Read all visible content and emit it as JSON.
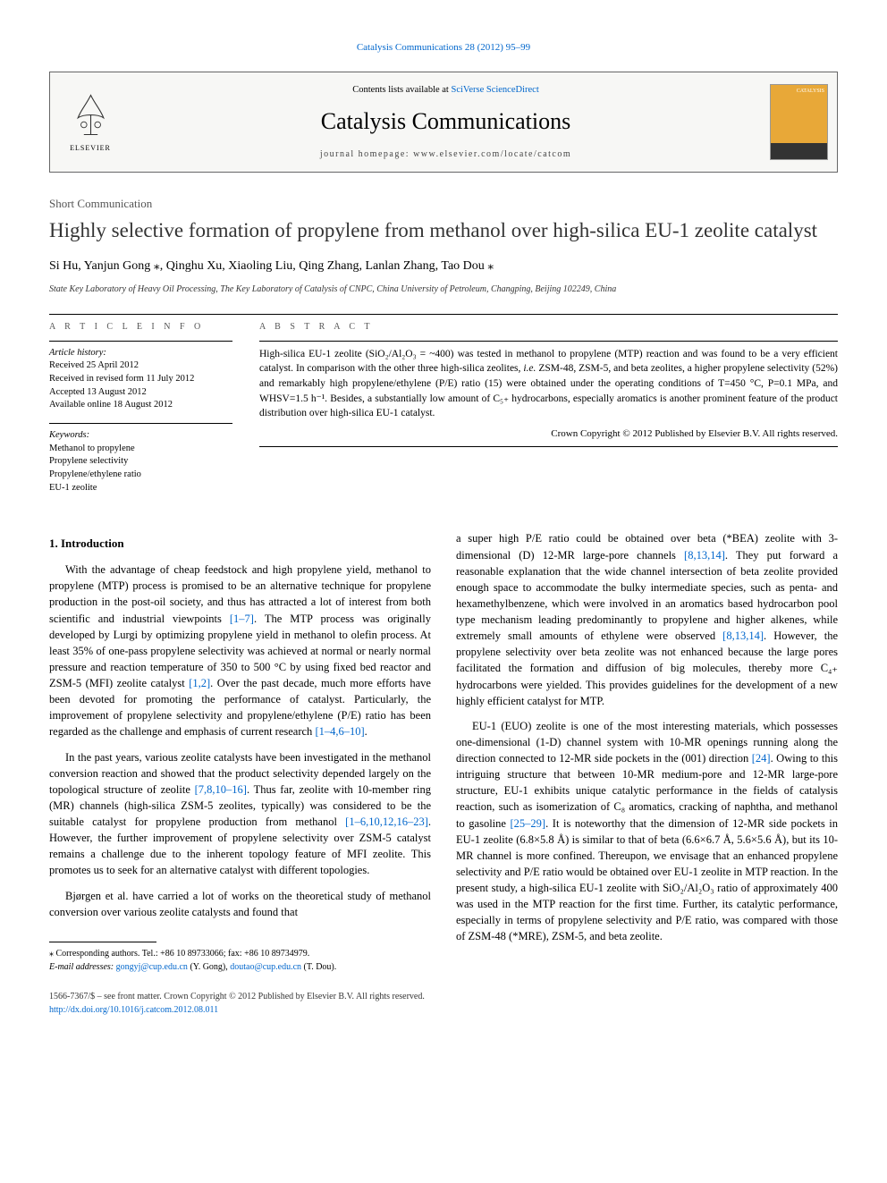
{
  "top_citation": "Catalysis Communications 28 (2012) 95–99",
  "header": {
    "elsevier_label": "ELSEVIER",
    "contents_prefix": "Contents lists available at ",
    "contents_link": "SciVerse ScienceDirect",
    "journal_name": "Catalysis Communications",
    "homepage_prefix": "journal homepage: ",
    "homepage_url": "www.elsevier.com/locate/catcom",
    "cover_label": "CATALYSIS"
  },
  "section_type": "Short Communication",
  "title": "Highly selective formation of propylene from methanol over high-silica EU-1 zeolite catalyst",
  "authors": "Si Hu, Yanjun Gong ⁎, Qinghu Xu, Xiaoling Liu, Qing Zhang, Lanlan Zhang, Tao Dou ⁎",
  "affiliation": "State Key Laboratory of Heavy Oil Processing, The Key Laboratory of Catalysis of CNPC, China University of Petroleum, Changping, Beijing 102249, China",
  "info": {
    "heading": "A R T I C L E   I N F O",
    "history_label": "Article history:",
    "history": [
      "Received 25 April 2012",
      "Received in revised form 11 July 2012",
      "Accepted 13 August 2012",
      "Available online 18 August 2012"
    ],
    "keywords_label": "Keywords:",
    "keywords": [
      "Methanol to propylene",
      "Propylene selectivity",
      "Propylene/ethylene ratio",
      "EU-1 zeolite"
    ]
  },
  "abstract": {
    "heading": "A B S T R A C T",
    "text": "High-silica EU-1 zeolite (SiO₂/Al₂O₃ = ~400) was tested in methanol to propylene (MTP) reaction and was found to be a very efficient catalyst. In comparison with the other three high-silica zeolites, i.e. ZSM-48, ZSM-5, and beta zeolites, a higher propylene selectivity (52%) and remarkably high propylene/ethylene (P/E) ratio (15) were obtained under the operating conditions of T=450 °C, P=0.1 MPa, and WHSV=1.5 h⁻¹. Besides, a substantially low amount of C₅₊ hydrocarbons, especially aromatics is another prominent feature of the product distribution over high-silica EU-1 catalyst.",
    "copyright": "Crown Copyright © 2012 Published by Elsevier B.V. All rights reserved."
  },
  "body": {
    "intro_heading": "1. Introduction",
    "left": [
      "With the advantage of cheap feedstock and high propylene yield, methanol to propylene (MTP) process is promised to be an alternative technique for propylene production in the post-oil society, and thus has attracted a lot of interest from both scientific and industrial viewpoints [1–7]. The MTP process was originally developed by Lurgi by optimizing propylene yield in methanol to olefin process. At least 35% of one-pass propylene selectivity was achieved at normal or nearly normal pressure and reaction temperature of 350 to 500 °C by using fixed bed reactor and ZSM-5 (MFI) zeolite catalyst [1,2]. Over the past decade, much more efforts have been devoted for promoting the performance of catalyst. Particularly, the improvement of propylene selectivity and propylene/ethylene (P/E) ratio has been regarded as the challenge and emphasis of current research [1–4,6–10].",
      "In the past years, various zeolite catalysts have been investigated in the methanol conversion reaction and showed that the product selectivity depended largely on the topological structure of zeolite [7,8,10–16]. Thus far, zeolite with 10-member ring (MR) channels (high-silica ZSM-5 zeolites, typically) was considered to be the suitable catalyst for propylene production from methanol [1–6,10,12,16–23]. However, the further improvement of propylene selectivity over ZSM-5 catalyst remains a challenge due to the inherent topology feature of MFI zeolite. This promotes us to seek for an alternative catalyst with different topologies.",
      "Bjørgen et al. have carried a lot of works on the theoretical study of methanol conversion over various zeolite catalysts and found that"
    ],
    "right": [
      "a super high P/E ratio could be obtained over beta (*BEA) zeolite with 3-dimensional (D) 12-MR large-pore channels [8,13,14]. They put forward a reasonable explanation that the wide channel intersection of beta zeolite provided enough space to accommodate the bulky intermediate species, such as penta- and hexamethylbenzene, which were involved in an aromatics based hydrocarbon pool type mechanism leading predominantly to propylene and higher alkenes, while extremely small amounts of ethylene were observed [8,13,14]. However, the propylene selectivity over beta zeolite was not enhanced because the large pores facilitated the formation and diffusion of big molecules, thereby more C₄₊ hydrocarbons were yielded. This provides guidelines for the development of a new highly efficient catalyst for MTP.",
      "EU-1 (EUO) zeolite is one of the most interesting materials, which possesses one-dimensional (1-D) channel system with 10-MR openings running along the direction connected to 12-MR side pockets in the (001) direction [24]. Owing to this intriguing structure that between 10-MR medium-pore and 12-MR large-pore structure, EU-1 exhibits unique catalytic performance in the fields of catalysis reaction, such as isomerization of C₈ aromatics, cracking of naphtha, and methanol to gasoline [25–29]. It is noteworthy that the dimension of 12-MR side pockets in EU-1 zeolite (6.8×5.8 Å) is similar to that of beta (6.6×6.7 Å, 5.6×5.6 Å), but its 10-MR channel is more confined. Thereupon, we envisage that an enhanced propylene selectivity and P/E ratio would be obtained over EU-1 zeolite in MTP reaction. In the present study, a high-silica EU-1 zeolite with SiO₂/Al₂O₃ ratio of approximately 400 was used in the MTP reaction for the first time. Further, its catalytic performance, especially in terms of propylene selectivity and P/E ratio, was compared with those of ZSM-48 (*MRE), ZSM-5, and beta zeolite."
    ]
  },
  "footnote": {
    "corr_line": "⁎ Corresponding authors. Tel.: +86 10 89733066; fax: +86 10 89734979.",
    "email_label": "E-mail addresses: ",
    "email1": "gongyj@cup.edu.cn",
    "email1_name": " (Y. Gong), ",
    "email2": "doutao@cup.edu.cn",
    "email2_name": " (T. Dou)."
  },
  "bottom": {
    "line1": "1566-7367/$ – see front matter. Crown Copyright © 2012 Published by Elsevier B.V. All rights reserved.",
    "doi": "http://dx.doi.org/10.1016/j.catcom.2012.08.011"
  },
  "refs": {
    "r1": "[1–7]",
    "r2": "[1,2]",
    "r3": "[1–4,6–10]",
    "r4": "[7,8,10–16]",
    "r5": "[1–6,10,12,16–23]",
    "r6": "[8,13,14]",
    "r7": "[8,13,14]",
    "r8": "[24]",
    "r9": "[25–29]"
  },
  "colors": {
    "link": "#0066cc",
    "cover_bg": "#e8a838",
    "header_bg": "#f7f7f5"
  }
}
